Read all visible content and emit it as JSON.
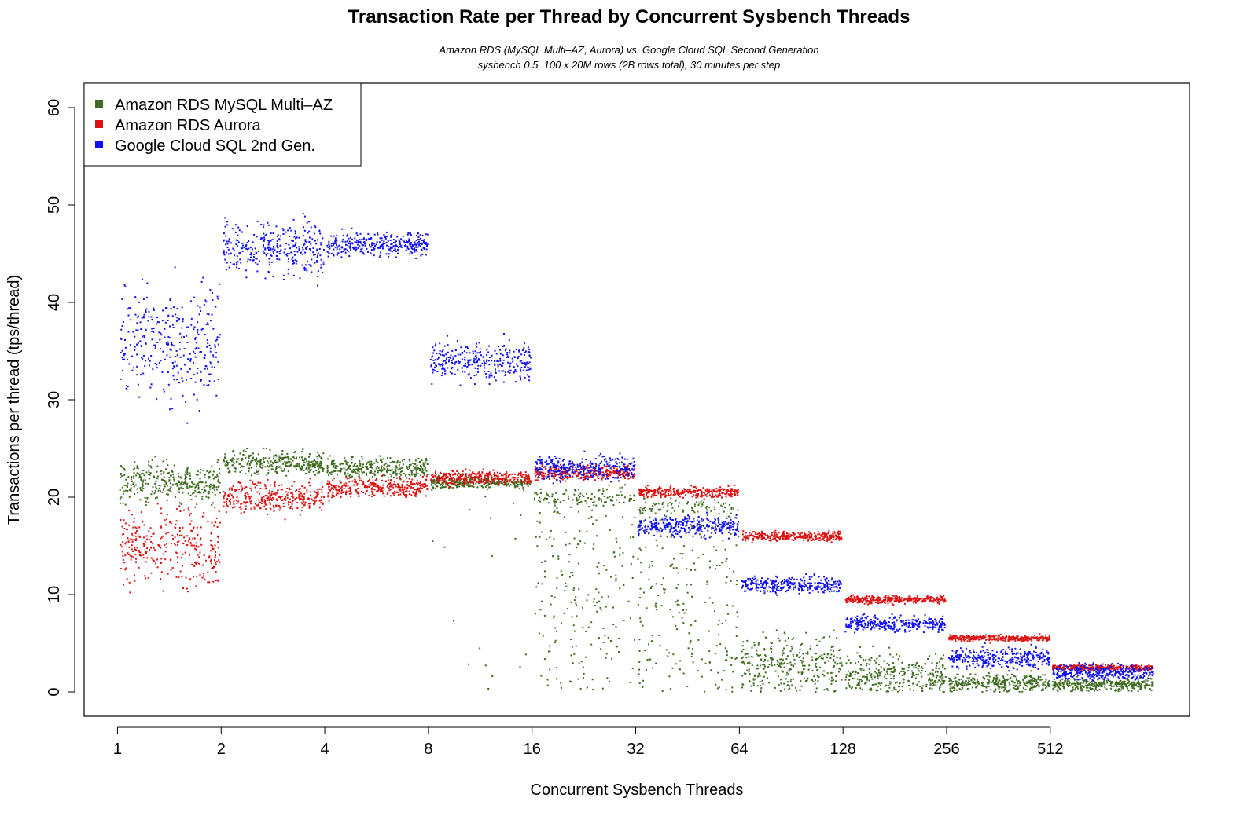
{
  "chart_data": {
    "type": "scatter",
    "title": "Transaction Rate per Thread by Concurrent Sysbench Threads",
    "subtitle": [
      "Amazon RDS (MySQL Multi–AZ, Aurora) vs. Google Cloud SQL Second Generation",
      "sysbench 0.5, 100 x 20M rows (2B rows total), 30 minutes per step"
    ],
    "xlabel": "Concurrent Sysbench Threads",
    "ylabel": "Transactions per thread (tps/thread)",
    "x_scale": "log2",
    "x_ticks": [
      1,
      2,
      4,
      8,
      16,
      32,
      64,
      128,
      256,
      512
    ],
    "x_tick_labels": [
      "1",
      "2",
      "4",
      "8",
      "16",
      "32",
      "64",
      "128",
      "256",
      "512"
    ],
    "y_ticks": [
      0,
      10,
      20,
      30,
      40,
      50,
      60
    ],
    "y_tick_labels": [
      "0",
      "10",
      "20",
      "30",
      "40",
      "50",
      "60"
    ],
    "ylim": [
      -2.5,
      62.5
    ],
    "xlim": [
      0.8,
      1300
    ],
    "x_end": 1024,
    "grid": false,
    "legend_position": "top-left",
    "series": [
      {
        "name": "Amazon RDS MySQL Multi–AZ",
        "color": "#3d6b1f",
        "steps": [
          {
            "threads": 1,
            "median": 21.5,
            "spread": 2.0,
            "low_scatter": 0.0
          },
          {
            "threads": 2,
            "median": 23.5,
            "spread": 1.2,
            "low_scatter": 0.0
          },
          {
            "threads": 4,
            "median": 23.0,
            "spread": 1.0,
            "low_scatter": 0.0
          },
          {
            "threads": 8,
            "median": 21.5,
            "spread": 0.6,
            "low_scatter": 0.05
          },
          {
            "threads": 16,
            "median": 20.0,
            "spread": 1.0,
            "low_scatter": 0.7
          },
          {
            "threads": 32,
            "median": 19.0,
            "spread": 1.0,
            "low_scatter": 0.75
          },
          {
            "threads": 64,
            "median": 4.0,
            "spread": 2.5,
            "low_scatter": 0.6
          },
          {
            "threads": 128,
            "median": 2.5,
            "spread": 2.0,
            "low_scatter": 0.6
          },
          {
            "threads": 256,
            "median": 1.0,
            "spread": 0.8,
            "low_scatter": 0.2
          },
          {
            "threads": 512,
            "median": 0.8,
            "spread": 0.6,
            "low_scatter": 0.1
          }
        ]
      },
      {
        "name": "Amazon RDS Aurora",
        "color": "#dd1111",
        "steps": [
          {
            "threads": 1,
            "median": 15.0,
            "spread": 4.0
          },
          {
            "threads": 2,
            "median": 20.0,
            "spread": 1.5
          },
          {
            "threads": 4,
            "median": 21.0,
            "spread": 1.0
          },
          {
            "threads": 8,
            "median": 22.0,
            "spread": 0.7
          },
          {
            "threads": 16,
            "median": 22.5,
            "spread": 0.7
          },
          {
            "threads": 32,
            "median": 20.5,
            "spread": 0.5
          },
          {
            "threads": 64,
            "median": 16.0,
            "spread": 0.5
          },
          {
            "threads": 128,
            "median": 9.5,
            "spread": 0.4
          },
          {
            "threads": 256,
            "median": 5.5,
            "spread": 0.3
          },
          {
            "threads": 512,
            "median": 2.5,
            "spread": 0.3
          }
        ]
      },
      {
        "name": "Google Cloud SQL 2nd Gen.",
        "color": "#1111ee",
        "steps": [
          {
            "threads": 1,
            "median": 36.0,
            "spread": 6.0
          },
          {
            "threads": 2,
            "median": 45.5,
            "spread": 2.5
          },
          {
            "threads": 4,
            "median": 46.0,
            "spread": 1.2
          },
          {
            "threads": 8,
            "median": 34.0,
            "spread": 2.0
          },
          {
            "threads": 16,
            "median": 23.0,
            "spread": 1.2
          },
          {
            "threads": 32,
            "median": 17.0,
            "spread": 1.0
          },
          {
            "threads": 64,
            "median": 11.0,
            "spread": 0.8
          },
          {
            "threads": 128,
            "median": 7.0,
            "spread": 0.8
          },
          {
            "threads": 256,
            "median": 3.5,
            "spread": 1.0
          },
          {
            "threads": 512,
            "median": 2.0,
            "spread": 0.8
          }
        ]
      }
    ]
  }
}
